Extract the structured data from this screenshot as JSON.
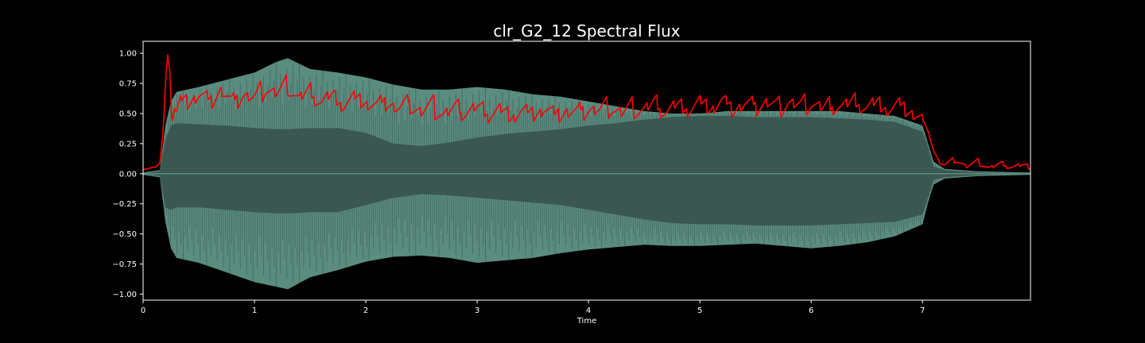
{
  "chart_data": {
    "type": "line",
    "title": "clr_G2_12 Spectral Flux",
    "xlabel": "Time",
    "ylabel": "",
    "xlim": [
      0,
      7.97
    ],
    "ylim": [
      -1.05,
      1.1
    ],
    "grid": false,
    "legend": "none",
    "x_ticks": [
      0,
      1,
      2,
      3,
      4,
      5,
      6,
      7
    ],
    "x_tick_labels": [
      "0",
      "1",
      "2",
      "3",
      "4",
      "5",
      "6",
      "7"
    ],
    "y_ticks": [
      1.0,
      0.75,
      0.5,
      0.25,
      0.0,
      -0.25,
      -0.5,
      -0.75,
      -1.0
    ],
    "y_tick_labels": [
      "1.00",
      "0.75",
      "0.50",
      "0.25",
      "0.00",
      "−0.25",
      "−0.50",
      "−0.75",
      "−1.00"
    ],
    "colors": {
      "background": "#000000",
      "waveform_outer": "#5a8c80",
      "waveform_inner": "#3b5751",
      "flux_line": "#ff0000",
      "text": "#ffffff"
    },
    "series": [
      {
        "kind": "waveform-envelope",
        "x": [
          0.0,
          0.15,
          0.2,
          0.25,
          0.3,
          0.5,
          0.75,
          1.0,
          1.2,
          1.3,
          1.5,
          1.75,
          2.0,
          2.25,
          2.5,
          2.75,
          3.0,
          3.25,
          3.5,
          3.75,
          4.0,
          4.25,
          4.5,
          4.75,
          5.0,
          5.25,
          5.5,
          5.75,
          6.0,
          6.25,
          6.5,
          6.75,
          7.0,
          7.05,
          7.1,
          7.2,
          7.5,
          7.97
        ],
        "upper": [
          0.01,
          0.03,
          0.4,
          0.6,
          0.68,
          0.72,
          0.78,
          0.84,
          0.93,
          0.96,
          0.87,
          0.84,
          0.8,
          0.74,
          0.7,
          0.7,
          0.72,
          0.7,
          0.66,
          0.64,
          0.6,
          0.56,
          0.52,
          0.5,
          0.5,
          0.52,
          0.52,
          0.52,
          0.52,
          0.52,
          0.5,
          0.48,
          0.4,
          0.25,
          0.1,
          0.04,
          0.02,
          0.01
        ],
        "lower": [
          -0.01,
          -0.03,
          -0.4,
          -0.62,
          -0.7,
          -0.74,
          -0.82,
          -0.9,
          -0.94,
          -0.96,
          -0.86,
          -0.8,
          -0.73,
          -0.69,
          -0.68,
          -0.7,
          -0.74,
          -0.72,
          -0.7,
          -0.66,
          -0.63,
          -0.61,
          -0.59,
          -0.6,
          -0.6,
          -0.59,
          -0.58,
          -0.6,
          -0.62,
          -0.6,
          -0.57,
          -0.52,
          -0.42,
          -0.24,
          -0.09,
          -0.04,
          -0.02,
          -0.01
        ],
        "inner_upper": [
          0.0,
          0.02,
          0.28,
          0.4,
          0.42,
          0.41,
          0.4,
          0.38,
          0.37,
          0.37,
          0.38,
          0.38,
          0.34,
          0.25,
          0.23,
          0.26,
          0.3,
          0.33,
          0.35,
          0.37,
          0.4,
          0.42,
          0.45,
          0.47,
          0.48,
          0.48,
          0.47,
          0.47,
          0.47,
          0.46,
          0.45,
          0.43,
          0.35,
          0.22,
          0.06,
          0.03,
          0.01,
          0.0
        ],
        "inner_lower": [
          0.0,
          -0.02,
          -0.28,
          -0.3,
          -0.28,
          -0.28,
          -0.3,
          -0.32,
          -0.33,
          -0.33,
          -0.32,
          -0.32,
          -0.26,
          -0.2,
          -0.17,
          -0.18,
          -0.2,
          -0.22,
          -0.24,
          -0.26,
          -0.3,
          -0.34,
          -0.38,
          -0.41,
          -0.42,
          -0.42,
          -0.43,
          -0.43,
          -0.43,
          -0.42,
          -0.41,
          -0.4,
          -0.34,
          -0.2,
          -0.05,
          -0.03,
          -0.01,
          0.0
        ]
      },
      {
        "kind": "flux-line",
        "x": [
          0.0,
          0.1,
          0.15,
          0.18,
          0.2,
          0.22,
          0.24,
          0.26,
          0.28,
          0.3,
          0.35,
          0.4,
          0.5,
          0.6,
          0.7,
          0.8,
          0.9,
          1.0,
          1.1,
          1.2,
          1.3,
          1.4,
          1.5,
          1.6,
          1.7,
          1.8,
          1.9,
          2.0,
          2.1,
          2.2,
          2.3,
          2.4,
          2.5,
          2.6,
          2.7,
          2.8,
          2.9,
          3.0,
          3.1,
          3.2,
          3.3,
          3.4,
          3.5,
          3.6,
          3.7,
          3.8,
          3.9,
          4.0,
          4.1,
          4.2,
          4.3,
          4.4,
          4.5,
          4.6,
          4.7,
          4.8,
          4.9,
          5.0,
          5.1,
          5.2,
          5.3,
          5.4,
          5.5,
          5.6,
          5.7,
          5.8,
          5.9,
          6.0,
          6.1,
          6.2,
          6.3,
          6.4,
          6.5,
          6.6,
          6.7,
          6.8,
          6.9,
          7.0,
          7.05,
          7.1,
          7.15,
          7.2,
          7.3,
          7.4,
          7.5,
          7.6,
          7.7,
          7.8,
          7.9,
          7.97
        ],
        "y": [
          0.04,
          0.05,
          0.08,
          0.35,
          0.75,
          1.0,
          0.85,
          0.4,
          0.55,
          0.5,
          0.62,
          0.6,
          0.66,
          0.6,
          0.7,
          0.58,
          0.66,
          0.62,
          0.72,
          0.66,
          0.74,
          0.62,
          0.68,
          0.6,
          0.64,
          0.58,
          0.62,
          0.6,
          0.56,
          0.6,
          0.54,
          0.58,
          0.52,
          0.56,
          0.5,
          0.54,
          0.52,
          0.55,
          0.5,
          0.53,
          0.48,
          0.52,
          0.5,
          0.54,
          0.48,
          0.52,
          0.5,
          0.54,
          0.52,
          0.56,
          0.5,
          0.55,
          0.53,
          0.58,
          0.52,
          0.56,
          0.54,
          0.58,
          0.55,
          0.6,
          0.54,
          0.58,
          0.56,
          0.6,
          0.55,
          0.6,
          0.56,
          0.6,
          0.54,
          0.58,
          0.56,
          0.6,
          0.55,
          0.58,
          0.54,
          0.56,
          0.52,
          0.45,
          0.35,
          0.2,
          0.1,
          0.07,
          0.12,
          0.06,
          0.1,
          0.05,
          0.08,
          0.06,
          0.07,
          0.05
        ]
      }
    ]
  }
}
